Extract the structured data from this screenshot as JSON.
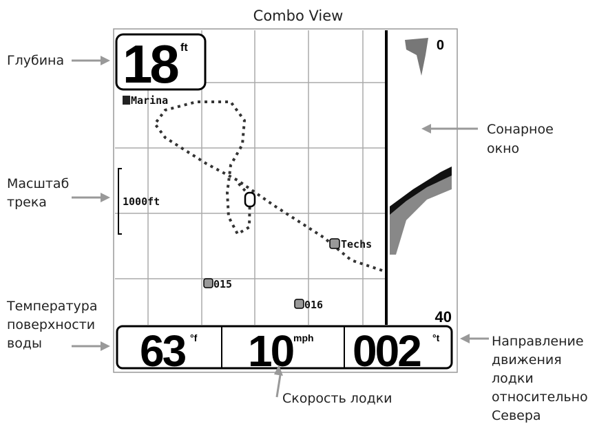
{
  "title": "Combo View",
  "screen": {
    "depth": "18",
    "depth_unit": "ft",
    "waypoint_marina": "Marina",
    "scale": "1000ft",
    "waypoint_techs": "Techs",
    "waypoint_1": "015",
    "waypoint_2": "016",
    "sonar_top": "0",
    "sonar_bottom": "40",
    "temperature": "63",
    "temperature_unit": "°f",
    "speed": "10",
    "speed_unit": "mph",
    "heading": "002",
    "heading_unit": "°t"
  },
  "callouts": {
    "depth": [
      "Глубина"
    ],
    "sonar": [
      "Сонарное",
      "окно"
    ],
    "scale": [
      "Масштаб",
      "трека"
    ],
    "temperature": [
      "Температура",
      "поверхности",
      "воды"
    ],
    "heading": [
      "Направление",
      "движения",
      "лодки",
      "относительно",
      "Севера"
    ],
    "speed": [
      "Скорость лодки"
    ]
  }
}
